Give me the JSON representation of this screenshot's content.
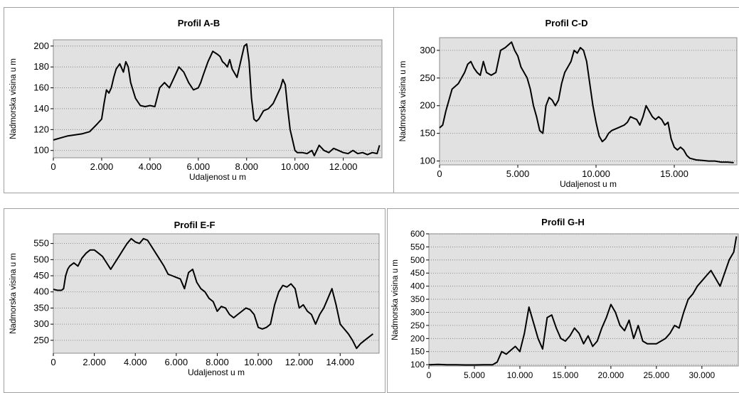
{
  "chart_data": [
    {
      "type": "line",
      "title": "Profil A-B",
      "xlabel": "Udaljenost u m",
      "ylabel": "Nadmorska visina u m",
      "xlim": [
        0,
        13600
      ],
      "ylim": [
        93,
        206
      ],
      "xticks": [
        0,
        2000,
        4000,
        6000,
        8000,
        10000,
        12000
      ],
      "xtick_labels": [
        "0",
        "2.000",
        "4.000",
        "6.000",
        "8.000",
        "10.000",
        "12.000"
      ],
      "yticks": [
        100,
        120,
        140,
        160,
        180,
        200
      ],
      "ytick_labels": [
        "100",
        "120",
        "140",
        "160",
        "180",
        "200"
      ],
      "grid": "horizontal-dotted",
      "series": [
        {
          "x": [
            0,
            300,
            600,
            900,
            1200,
            1500,
            1800,
            2000,
            2100,
            2200,
            2300,
            2400,
            2500,
            2600,
            2750,
            2900,
            3000,
            3100,
            3200,
            3400,
            3600,
            3800,
            4000,
            4200,
            4400,
            4600,
            4800,
            5000,
            5200,
            5400,
            5600,
            5800,
            6000,
            6100,
            6200,
            6400,
            6600,
            6800,
            6900,
            7000,
            7100,
            7200,
            7300,
            7400,
            7600,
            7800,
            7900,
            8000,
            8100,
            8200,
            8300,
            8400,
            8500,
            8700,
            8900,
            9100,
            9300,
            9400,
            9500,
            9600,
            9700,
            9800,
            9900,
            10000,
            10100,
            10300,
            10500,
            10700,
            10800,
            11000,
            11200,
            11400,
            11600,
            11800,
            12000,
            12200,
            12400,
            12600,
            12800,
            13000,
            13200,
            13400,
            13500
          ],
          "y": [
            110,
            112,
            114,
            115,
            116,
            118,
            125,
            130,
            145,
            158,
            155,
            160,
            170,
            178,
            183,
            175,
            185,
            180,
            165,
            150,
            143,
            142,
            143,
            142,
            160,
            165,
            160,
            170,
            180,
            175,
            165,
            158,
            160,
            165,
            172,
            185,
            195,
            192,
            190,
            185,
            183,
            180,
            187,
            178,
            170,
            190,
            200,
            202,
            185,
            150,
            130,
            128,
            130,
            138,
            140,
            145,
            155,
            160,
            168,
            163,
            140,
            120,
            110,
            100,
            98,
            98,
            97,
            100,
            95,
            105,
            100,
            98,
            102,
            100,
            98,
            97,
            100,
            97,
            98,
            96,
            98,
            97,
            105
          ]
        }
      ]
    },
    {
      "type": "line",
      "title": "Profil C-D",
      "xlabel": "Udaljenost u m",
      "ylabel": "Nadmorska visina u m",
      "xlim": [
        0,
        19000
      ],
      "ylim": [
        93,
        323
      ],
      "xticks": [
        0,
        5000,
        10000,
        15000
      ],
      "xtick_labels": [
        "0",
        "5.000",
        "10.000",
        "15.000"
      ],
      "yticks": [
        100,
        150,
        200,
        250,
        300
      ],
      "ytick_labels": [
        "100",
        "150",
        "200",
        "250",
        "300"
      ],
      "grid": "horizontal-dotted",
      "series": [
        {
          "x": [
            0,
            200,
            400,
            600,
            800,
            1200,
            1600,
            1800,
            2000,
            2200,
            2400,
            2600,
            2800,
            3000,
            3300,
            3600,
            3900,
            4200,
            4400,
            4600,
            4800,
            5000,
            5200,
            5400,
            5600,
            5800,
            6000,
            6200,
            6400,
            6600,
            6800,
            7000,
            7200,
            7400,
            7600,
            7800,
            8000,
            8200,
            8400,
            8600,
            8800,
            9000,
            9200,
            9400,
            9600,
            9800,
            10000,
            10200,
            10400,
            10600,
            10800,
            11000,
            11400,
            11800,
            12000,
            12200,
            12600,
            12800,
            13000,
            13200,
            13400,
            13600,
            13800,
            14000,
            14200,
            14400,
            14600,
            14800,
            15000,
            15200,
            15400,
            15600,
            15800,
            16000,
            16400,
            16800,
            17200,
            17600,
            18000,
            18400,
            18800
          ],
          "y": [
            160,
            165,
            190,
            210,
            230,
            240,
            260,
            275,
            280,
            268,
            260,
            255,
            280,
            260,
            255,
            260,
            300,
            305,
            310,
            315,
            300,
            290,
            270,
            260,
            250,
            230,
            200,
            180,
            155,
            150,
            200,
            215,
            210,
            200,
            210,
            240,
            260,
            270,
            280,
            300,
            295,
            305,
            300,
            280,
            240,
            200,
            170,
            145,
            135,
            140,
            150,
            155,
            160,
            165,
            170,
            180,
            175,
            165,
            180,
            200,
            190,
            180,
            175,
            180,
            175,
            165,
            170,
            140,
            125,
            120,
            125,
            120,
            110,
            105,
            102,
            101,
            100,
            100,
            98,
            98,
            97
          ]
        }
      ]
    },
    {
      "type": "line",
      "title": "Profil E-F",
      "xlabel": "Udaljenost u m",
      "ylabel": "Nadmorska visina u m",
      "xlim": [
        0,
        15900
      ],
      "ylim": [
        210,
        580
      ],
      "xticks": [
        0,
        2000,
        4000,
        6000,
        8000,
        10000,
        12000,
        14000
      ],
      "xtick_labels": [
        "0",
        "2.000",
        "4.000",
        "6.000",
        "8.000",
        "10.000",
        "12.000",
        "14.000"
      ],
      "yticks": [
        250,
        300,
        350,
        400,
        450,
        500,
        550
      ],
      "ytick_labels": [
        "250",
        "300",
        "350",
        "400",
        "450",
        "500",
        "550"
      ],
      "grid": "horizontal-dotted",
      "series": [
        {
          "x": [
            0,
            200,
            400,
            500,
            600,
            700,
            800,
            1000,
            1200,
            1400,
            1600,
            1800,
            2000,
            2200,
            2400,
            2600,
            2800,
            3000,
            3200,
            3400,
            3600,
            3800,
            4000,
            4200,
            4400,
            4600,
            4800,
            5000,
            5200,
            5400,
            5600,
            5800,
            6000,
            6200,
            6400,
            6600,
            6800,
            7000,
            7200,
            7400,
            7600,
            7800,
            8000,
            8200,
            8400,
            8600,
            8800,
            9000,
            9200,
            9400,
            9600,
            9800,
            10000,
            10200,
            10400,
            10600,
            10800,
            11000,
            11200,
            11400,
            11600,
            11800,
            12000,
            12200,
            12400,
            12600,
            12800,
            13000,
            13200,
            13400,
            13600,
            13800,
            14000,
            14200,
            14400,
            14600,
            14800,
            15000,
            15200,
            15400,
            15600
          ],
          "y": [
            408,
            405,
            405,
            410,
            450,
            470,
            480,
            490,
            480,
            505,
            520,
            530,
            530,
            520,
            510,
            490,
            470,
            490,
            510,
            530,
            550,
            565,
            555,
            550,
            565,
            560,
            540,
            520,
            500,
            480,
            455,
            450,
            445,
            440,
            410,
            460,
            470,
            430,
            410,
            400,
            380,
            370,
            340,
            355,
            350,
            330,
            320,
            330,
            340,
            350,
            345,
            330,
            290,
            285,
            290,
            300,
            360,
            400,
            420,
            415,
            425,
            410,
            350,
            360,
            340,
            330,
            300,
            330,
            350,
            380,
            410,
            360,
            300,
            285,
            270,
            250,
            225,
            240,
            250,
            260,
            270
          ]
        }
      ]
    },
    {
      "type": "line",
      "title": "Profil G-H",
      "xlabel": "",
      "ylabel": "Nadmorska visina u m",
      "xlim": [
        0,
        34000
      ],
      "ylim": [
        95,
        600
      ],
      "xticks": [
        0,
        5000,
        10000,
        15000,
        20000,
        25000,
        30000
      ],
      "xtick_labels": [
        "0",
        "5.000",
        "10.000",
        "15.000",
        "20.000",
        "25.000",
        "30.000"
      ],
      "yticks": [
        100,
        150,
        200,
        250,
        300,
        350,
        400,
        450,
        500,
        550,
        600
      ],
      "ytick_labels": [
        "100",
        "150",
        "200",
        "250",
        "300",
        "350",
        "400",
        "450",
        "500",
        "550",
        "600"
      ],
      "grid": "horizontal-dotted",
      "series": [
        {
          "x": [
            0,
            1000,
            2000,
            3000,
            4000,
            5000,
            6000,
            7000,
            7500,
            8000,
            8500,
            9000,
            9500,
            10000,
            10500,
            11000,
            11500,
            12000,
            12500,
            13000,
            13500,
            14000,
            14500,
            15000,
            15500,
            16000,
            16500,
            17000,
            17500,
            18000,
            18500,
            19000,
            19500,
            20000,
            20500,
            21000,
            21500,
            22000,
            22500,
            23000,
            23500,
            24000,
            24500,
            25000,
            25500,
            26000,
            26500,
            27000,
            27500,
            28000,
            28500,
            29000,
            29500,
            30000,
            30500,
            31000,
            31500,
            32000,
            32500,
            33000,
            33500,
            33800
          ],
          "y": [
            100,
            101,
            100,
            100,
            99,
            99,
            100,
            100,
            110,
            150,
            140,
            155,
            170,
            150,
            220,
            320,
            260,
            200,
            160,
            280,
            290,
            240,
            200,
            190,
            210,
            240,
            220,
            180,
            210,
            170,
            190,
            240,
            280,
            330,
            300,
            250,
            230,
            270,
            200,
            250,
            190,
            180,
            180,
            180,
            190,
            200,
            220,
            250,
            240,
            300,
            350,
            370,
            400,
            420,
            440,
            460,
            430,
            400,
            450,
            500,
            530,
            590
          ]
        }
      ]
    }
  ]
}
